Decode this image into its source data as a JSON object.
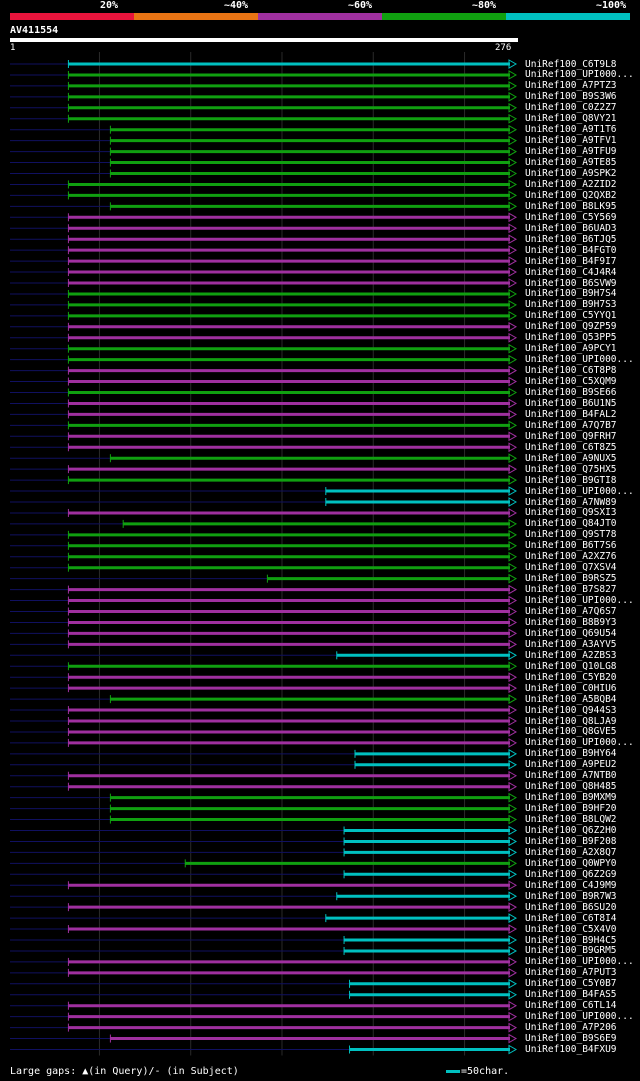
{
  "legend": {
    "labels": [
      "20%",
      "~40%",
      "~60%",
      "~80%",
      "~100%"
    ],
    "colors": [
      "#e8143c",
      "#e87414",
      "#a030a0",
      "#10a010",
      "#00c0c0"
    ]
  },
  "query": {
    "name": "AV411554",
    "start": "1",
    "end": "276",
    "length": 276
  },
  "hits": [
    {
      "label": "UniRef100_C6T9L8",
      "start": 33,
      "color": "cyan"
    },
    {
      "label": "UniRef100_UPI000...",
      "start": 33,
      "color": "green"
    },
    {
      "label": "UniRef100_A7PTZ3",
      "start": 33,
      "color": "green"
    },
    {
      "label": "UniRef100_B9S3W6",
      "start": 33,
      "color": "green"
    },
    {
      "label": "UniRef100_C0Z2Z7",
      "start": 33,
      "color": "green"
    },
    {
      "label": "UniRef100_Q8VY21",
      "start": 33,
      "color": "green"
    },
    {
      "label": "UniRef100_A9T1T6",
      "start": 56,
      "color": "green"
    },
    {
      "label": "UniRef100_A9TFV1",
      "start": 56,
      "color": "green"
    },
    {
      "label": "UniRef100_A9TFU9",
      "start": 56,
      "color": "green"
    },
    {
      "label": "UniRef100_A9TE85",
      "start": 56,
      "color": "green"
    },
    {
      "label": "UniRef100_A9SPK2",
      "start": 56,
      "color": "green"
    },
    {
      "label": "UniRef100_A2ZID2",
      "start": 33,
      "color": "green"
    },
    {
      "label": "UniRef100_Q2QXB2",
      "start": 33,
      "color": "green"
    },
    {
      "label": "UniRef100_B8LK95",
      "start": 56,
      "color": "green"
    },
    {
      "label": "UniRef100_C5Y569",
      "start": 33,
      "color": "magenta"
    },
    {
      "label": "UniRef100_B6UAD3",
      "start": 33,
      "color": "magenta"
    },
    {
      "label": "UniRef100_B6TJQ5",
      "start": 33,
      "color": "magenta"
    },
    {
      "label": "UniRef100_B4FGT0",
      "start": 33,
      "color": "magenta"
    },
    {
      "label": "UniRef100_B4F9I7",
      "start": 33,
      "color": "magenta"
    },
    {
      "label": "UniRef100_C4J4R4",
      "start": 33,
      "color": "magenta"
    },
    {
      "label": "UniRef100_B6SVW9",
      "start": 33,
      "color": "magenta"
    },
    {
      "label": "UniRef100_B9H7S4",
      "start": 33,
      "color": "green"
    },
    {
      "label": "UniRef100_B9H7S3",
      "start": 33,
      "color": "green"
    },
    {
      "label": "UniRef100_C5YYQ1",
      "start": 33,
      "color": "green"
    },
    {
      "label": "UniRef100_Q9ZP59",
      "start": 33,
      "color": "magenta"
    },
    {
      "label": "UniRef100_Q53PP5",
      "start": 33,
      "color": "magenta"
    },
    {
      "label": "UniRef100_A9PCY1",
      "start": 33,
      "color": "green"
    },
    {
      "label": "UniRef100_UPI000...",
      "start": 33,
      "color": "green"
    },
    {
      "label": "UniRef100_C6T8P8",
      "start": 33,
      "color": "magenta"
    },
    {
      "label": "UniRef100_C5XQM9",
      "start": 33,
      "color": "magenta"
    },
    {
      "label": "UniRef100_B9SE66",
      "start": 33,
      "color": "green"
    },
    {
      "label": "UniRef100_B6U1N5",
      "start": 33,
      "color": "magenta"
    },
    {
      "label": "UniRef100_B4FAL2",
      "start": 33,
      "color": "magenta"
    },
    {
      "label": "UniRef100_A7Q7B7",
      "start": 33,
      "color": "green"
    },
    {
      "label": "UniRef100_Q9FRH7",
      "start": 33,
      "color": "magenta"
    },
    {
      "label": "UniRef100_C6T8Z5",
      "start": 33,
      "color": "magenta"
    },
    {
      "label": "UniRef100_A9NUX5",
      "start": 56,
      "color": "green"
    },
    {
      "label": "UniRef100_Q75HX5",
      "start": 33,
      "color": "magenta"
    },
    {
      "label": "UniRef100_B9GTI8",
      "start": 33,
      "color": "green"
    },
    {
      "label": "UniRef100_UPI000...",
      "start": 174,
      "color": "cyan"
    },
    {
      "label": "UniRef100_A7NW89",
      "start": 174,
      "color": "cyan"
    },
    {
      "label": "UniRef100_Q9SXI3",
      "start": 33,
      "color": "magenta"
    },
    {
      "label": "UniRef100_Q84JT0",
      "start": 63,
      "color": "green"
    },
    {
      "label": "UniRef100_Q9ST78",
      "start": 33,
      "color": "green"
    },
    {
      "label": "UniRef100_B6T7S6",
      "start": 33,
      "color": "green"
    },
    {
      "label": "UniRef100_A2XZ76",
      "start": 33,
      "color": "green"
    },
    {
      "label": "UniRef100_Q7XSV4",
      "start": 33,
      "color": "green"
    },
    {
      "label": "UniRef100_B9RSZ5",
      "start": 142,
      "color": "green"
    },
    {
      "label": "UniRef100_B7S827",
      "start": 33,
      "color": "magenta"
    },
    {
      "label": "UniRef100_UPI000...",
      "start": 33,
      "color": "magenta"
    },
    {
      "label": "UniRef100_A7Q6S7",
      "start": 33,
      "color": "magenta"
    },
    {
      "label": "UniRef100_B8B9Y3",
      "start": 33,
      "color": "magenta"
    },
    {
      "label": "UniRef100_Q69U54",
      "start": 33,
      "color": "magenta"
    },
    {
      "label": "UniRef100_A3AYV5",
      "start": 33,
      "color": "magenta"
    },
    {
      "label": "UniRef100_A2ZBS3",
      "start": 180,
      "color": "cyan"
    },
    {
      "label": "UniRef100_Q10LG8",
      "start": 33,
      "color": "green"
    },
    {
      "label": "UniRef100_C5YB20",
      "start": 33,
      "color": "magenta"
    },
    {
      "label": "UniRef100_C0HIU6",
      "start": 33,
      "color": "magenta"
    },
    {
      "label": "UniRef100_A5BQB4",
      "start": 56,
      "color": "green"
    },
    {
      "label": "UniRef100_Q944S3",
      "start": 33,
      "color": "magenta"
    },
    {
      "label": "UniRef100_Q8LJA9",
      "start": 33,
      "color": "magenta"
    },
    {
      "label": "UniRef100_Q8GVE5",
      "start": 33,
      "color": "magenta"
    },
    {
      "label": "UniRef100_UPI000...",
      "start": 33,
      "color": "magenta"
    },
    {
      "label": "UniRef100_B9HY64",
      "start": 190,
      "color": "cyan"
    },
    {
      "label": "UniRef100_A9PEU2",
      "start": 190,
      "color": "cyan"
    },
    {
      "label": "UniRef100_A7NTB0",
      "start": 33,
      "color": "magenta"
    },
    {
      "label": "UniRef100_Q8H485",
      "start": 33,
      "color": "magenta"
    },
    {
      "label": "UniRef100_B9MXM9",
      "start": 56,
      "color": "green"
    },
    {
      "label": "UniRef100_B9HF20",
      "start": 56,
      "color": "green"
    },
    {
      "label": "UniRef100_B8LQW2",
      "start": 56,
      "color": "green"
    },
    {
      "label": "UniRef100_Q6Z2H0",
      "start": 184,
      "color": "cyan"
    },
    {
      "label": "UniRef100_B9F208",
      "start": 184,
      "color": "cyan"
    },
    {
      "label": "UniRef100_A2X8Q7",
      "start": 184,
      "color": "cyan"
    },
    {
      "label": "UniRef100_Q0WPY0",
      "start": 97,
      "color": "green"
    },
    {
      "label": "UniRef100_Q6Z2G9",
      "start": 184,
      "color": "cyan"
    },
    {
      "label": "UniRef100_C4J9M9",
      "start": 33,
      "color": "magenta"
    },
    {
      "label": "UniRef100_B9R7W3",
      "start": 180,
      "color": "cyan"
    },
    {
      "label": "UniRef100_B6SU20",
      "start": 33,
      "color": "magenta"
    },
    {
      "label": "UniRef100_C6T8I4",
      "start": 174,
      "color": "cyan"
    },
    {
      "label": "UniRef100_C5X4V0",
      "start": 33,
      "color": "magenta"
    },
    {
      "label": "UniRef100_B9H4C5",
      "start": 184,
      "color": "cyan"
    },
    {
      "label": "UniRef100_B9GRM5",
      "start": 184,
      "color": "cyan"
    },
    {
      "label": "UniRef100_UPI000...",
      "start": 33,
      "color": "magenta"
    },
    {
      "label": "UniRef100_A7PUT3",
      "start": 33,
      "color": "magenta"
    },
    {
      "label": "UniRef100_C5Y0B7",
      "start": 187,
      "color": "cyan"
    },
    {
      "label": "UniRef100_B4FAS5",
      "start": 187,
      "color": "cyan"
    },
    {
      "label": "UniRef100_C6TL14",
      "start": 33,
      "color": "magenta"
    },
    {
      "label": "UniRef100_UPI000...",
      "start": 33,
      "color": "magenta"
    },
    {
      "label": "UniRef100_A7P206",
      "start": 33,
      "color": "magenta"
    },
    {
      "label": "UniRef100_B9S6E9",
      "start": 56,
      "color": "magenta"
    },
    {
      "label": "UniRef100_B4FXU9",
      "start": 187,
      "color": "cyan"
    }
  ],
  "footer": {
    "text": "Large gaps: ▲(in Query)/- (in Subject)",
    "scale": "=50char."
  }
}
